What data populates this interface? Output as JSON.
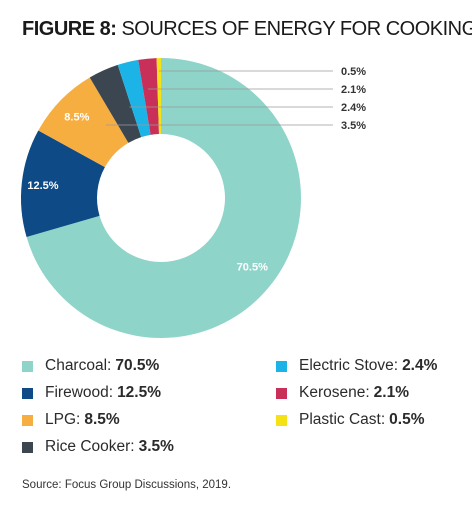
{
  "title": {
    "figure": "FIGURE 8:",
    "text": "SOURCES OF ENERGY FOR COOKING"
  },
  "chart_data": {
    "type": "pie",
    "donut": true,
    "title": "FIGURE 8: SOURCES OF ENERGY FOR COOKING",
    "series": [
      {
        "name": "Charcoal",
        "value": 70.5,
        "label": "70.5%",
        "color": "#8fd4c9"
      },
      {
        "name": "Firewood",
        "value": 12.5,
        "label": "12.5%",
        "color": "#0d4a86"
      },
      {
        "name": "LPG",
        "value": 8.5,
        "label": "8.5%",
        "color": "#f7ae40"
      },
      {
        "name": "Rice Cooker",
        "value": 3.5,
        "label": "3.5%",
        "color": "#3b4650"
      },
      {
        "name": "Electric Stove",
        "value": 2.4,
        "label": "2.4%",
        "color": "#1cb4e6"
      },
      {
        "name": "Kerosene",
        "value": 2.1,
        "label": "2.1%",
        "color": "#c8305a"
      },
      {
        "name": "Plastic Cast",
        "value": 0.5,
        "label": "0.5%",
        "color": "#f5e216"
      }
    ],
    "legend_position": "bottom"
  },
  "legend": [
    {
      "label": "Charcoal:",
      "value": "70.5%"
    },
    {
      "label": "Firewood:",
      "value": "12.5%"
    },
    {
      "label": "LPG:",
      "value": "8.5%"
    },
    {
      "label": "Rice Cooker:",
      "value": "3.5%"
    },
    {
      "label": "Electric Stove:",
      "value": "2.4%"
    },
    {
      "label": "Kerosene:",
      "value": "2.1%"
    },
    {
      "label": "Plastic Cast:",
      "value": "0.5%"
    }
  ],
  "source": "Source: Focus Group Discussions, 2019."
}
